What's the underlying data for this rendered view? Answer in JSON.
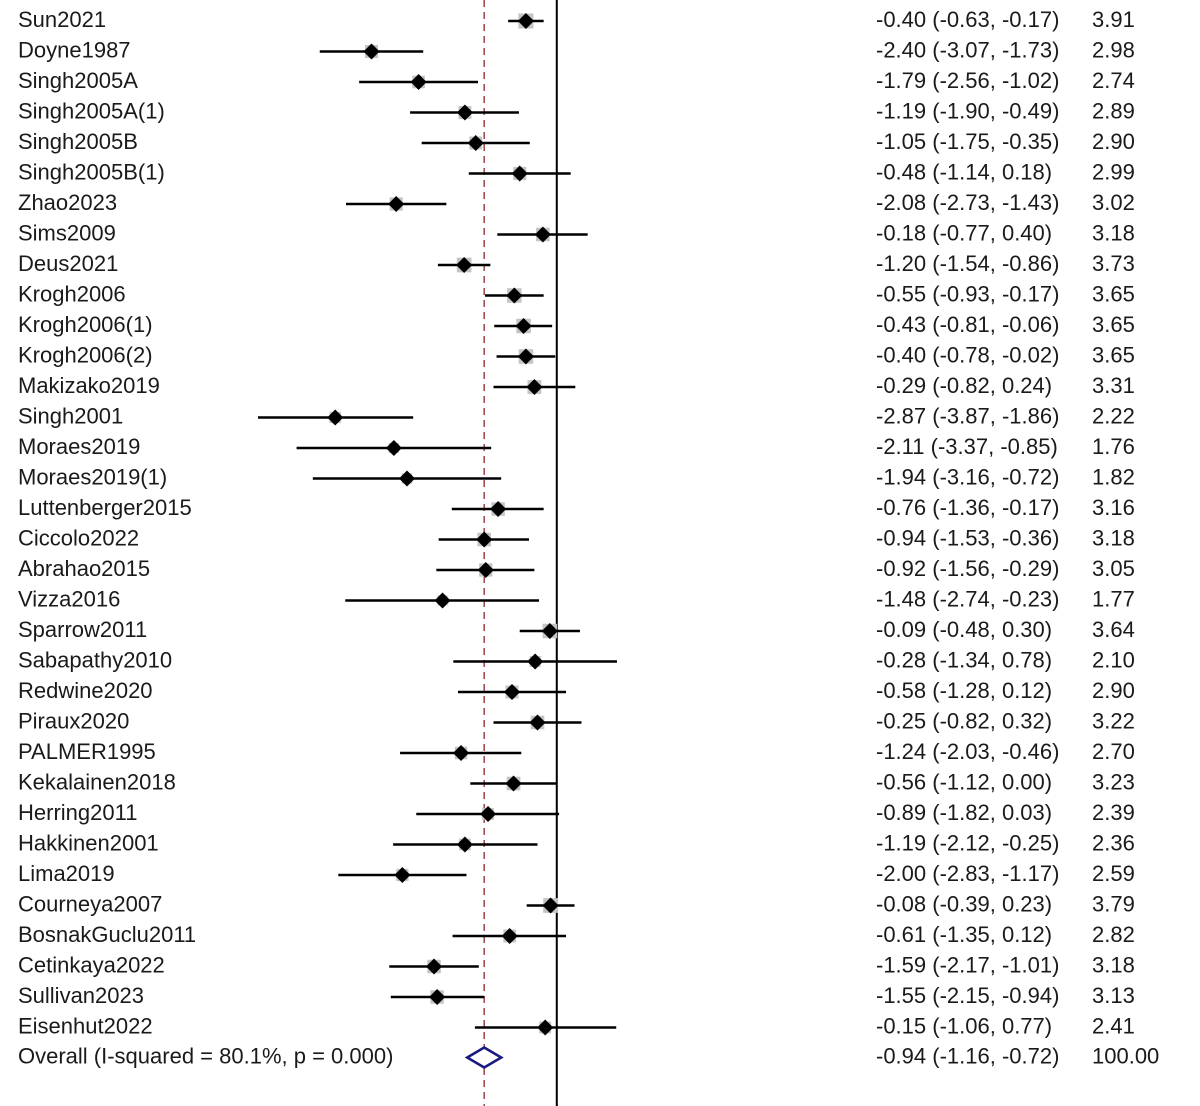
{
  "chart_data": {
    "type": "forest",
    "null_value": 0,
    "xlim": [
      -3.87,
      0.78
    ],
    "studies": [
      {
        "name": "Sun2021",
        "es": -0.4,
        "lo": -0.63,
        "hi": -0.17,
        "weight": 3.91,
        "es_text": "-0.40 (-0.63, -0.17)",
        "weight_text": "3.91"
      },
      {
        "name": "Doyne1987",
        "es": -2.4,
        "lo": -3.07,
        "hi": -1.73,
        "weight": 2.98,
        "es_text": "-2.40 (-3.07, -1.73)",
        "weight_text": "2.98"
      },
      {
        "name": "Singh2005A",
        "es": -1.79,
        "lo": -2.56,
        "hi": -1.02,
        "weight": 2.74,
        "es_text": "-1.79 (-2.56, -1.02)",
        "weight_text": "2.74"
      },
      {
        "name": "Singh2005A(1)",
        "es": -1.19,
        "lo": -1.9,
        "hi": -0.49,
        "weight": 2.89,
        "es_text": "-1.19 (-1.90, -0.49)",
        "weight_text": "2.89"
      },
      {
        "name": "Singh2005B",
        "es": -1.05,
        "lo": -1.75,
        "hi": -0.35,
        "weight": 2.9,
        "es_text": "-1.05 (-1.75, -0.35)",
        "weight_text": "2.90"
      },
      {
        "name": "Singh2005B(1)",
        "es": -0.48,
        "lo": -1.14,
        "hi": 0.18,
        "weight": 2.99,
        "es_text": "-0.48 (-1.14, 0.18)",
        "weight_text": "2.99"
      },
      {
        "name": "Zhao2023",
        "es": -2.08,
        "lo": -2.73,
        "hi": -1.43,
        "weight": 3.02,
        "es_text": "-2.08 (-2.73, -1.43)",
        "weight_text": "3.02"
      },
      {
        "name": "Sims2009",
        "es": -0.18,
        "lo": -0.77,
        "hi": 0.4,
        "weight": 3.18,
        "es_text": "-0.18 (-0.77, 0.40)",
        "weight_text": "3.18"
      },
      {
        "name": "Deus2021",
        "es": -1.2,
        "lo": -1.54,
        "hi": -0.86,
        "weight": 3.73,
        "es_text": "-1.20 (-1.54, -0.86)",
        "weight_text": "3.73"
      },
      {
        "name": "Krogh2006",
        "es": -0.55,
        "lo": -0.93,
        "hi": -0.17,
        "weight": 3.65,
        "es_text": "-0.55 (-0.93, -0.17)",
        "weight_text": "3.65"
      },
      {
        "name": "Krogh2006(1)",
        "es": -0.43,
        "lo": -0.81,
        "hi": -0.06,
        "weight": 3.65,
        "es_text": "-0.43 (-0.81, -0.06)",
        "weight_text": "3.65"
      },
      {
        "name": "Krogh2006(2)",
        "es": -0.4,
        "lo": -0.78,
        "hi": -0.02,
        "weight": 3.65,
        "es_text": "-0.40 (-0.78, -0.02)",
        "weight_text": "3.65"
      },
      {
        "name": "Makizako2019",
        "es": -0.29,
        "lo": -0.82,
        "hi": 0.24,
        "weight": 3.31,
        "es_text": "-0.29 (-0.82, 0.24)",
        "weight_text": "3.31"
      },
      {
        "name": "Singh2001",
        "es": -2.87,
        "lo": -3.87,
        "hi": -1.86,
        "weight": 2.22,
        "es_text": "-2.87 (-3.87, -1.86)",
        "weight_text": "2.22"
      },
      {
        "name": "Moraes2019",
        "es": -2.11,
        "lo": -3.37,
        "hi": -0.85,
        "weight": 1.76,
        "es_text": "-2.11 (-3.37, -0.85)",
        "weight_text": "1.76"
      },
      {
        "name": "Moraes2019(1)",
        "es": -1.94,
        "lo": -3.16,
        "hi": -0.72,
        "weight": 1.82,
        "es_text": "-1.94 (-3.16, -0.72)",
        "weight_text": "1.82"
      },
      {
        "name": "Luttenberger2015",
        "es": -0.76,
        "lo": -1.36,
        "hi": -0.17,
        "weight": 3.16,
        "es_text": "-0.76 (-1.36, -0.17)",
        "weight_text": "3.16"
      },
      {
        "name": "Ciccolo2022",
        "es": -0.94,
        "lo": -1.53,
        "hi": -0.36,
        "weight": 3.18,
        "es_text": "-0.94 (-1.53, -0.36)",
        "weight_text": "3.18"
      },
      {
        "name": "Abrahao2015",
        "es": -0.92,
        "lo": -1.56,
        "hi": -0.29,
        "weight": 3.05,
        "es_text": "-0.92 (-1.56, -0.29)",
        "weight_text": "3.05"
      },
      {
        "name": "Vizza2016",
        "es": -1.48,
        "lo": -2.74,
        "hi": -0.23,
        "weight": 1.77,
        "es_text": "-1.48 (-2.74, -0.23)",
        "weight_text": "1.77"
      },
      {
        "name": "Sparrow2011",
        "es": -0.09,
        "lo": -0.48,
        "hi": 0.3,
        "weight": 3.64,
        "es_text": "-0.09 (-0.48, 0.30)",
        "weight_text": "3.64"
      },
      {
        "name": "Sabapathy2010",
        "es": -0.28,
        "lo": -1.34,
        "hi": 0.78,
        "weight": 2.1,
        "es_text": "-0.28 (-1.34, 0.78)",
        "weight_text": "2.10"
      },
      {
        "name": "Redwine2020",
        "es": -0.58,
        "lo": -1.28,
        "hi": 0.12,
        "weight": 2.9,
        "es_text": "-0.58 (-1.28, 0.12)",
        "weight_text": "2.90"
      },
      {
        "name": "Piraux2020",
        "es": -0.25,
        "lo": -0.82,
        "hi": 0.32,
        "weight": 3.22,
        "es_text": "-0.25 (-0.82, 0.32)",
        "weight_text": "3.22"
      },
      {
        "name": "PALMER1995",
        "es": -1.24,
        "lo": -2.03,
        "hi": -0.46,
        "weight": 2.7,
        "es_text": "-1.24 (-2.03, -0.46)",
        "weight_text": "2.70"
      },
      {
        "name": "Kekalainen2018",
        "es": -0.56,
        "lo": -1.12,
        "hi": 0.0,
        "weight": 3.23,
        "es_text": "-0.56 (-1.12, 0.00)",
        "weight_text": "3.23"
      },
      {
        "name": "Herring2011",
        "es": -0.89,
        "lo": -1.82,
        "hi": 0.03,
        "weight": 2.39,
        "es_text": "-0.89 (-1.82, 0.03)",
        "weight_text": "2.39"
      },
      {
        "name": "Hakkinen2001",
        "es": -1.19,
        "lo": -2.12,
        "hi": -0.25,
        "weight": 2.36,
        "es_text": "-1.19 (-2.12, -0.25)",
        "weight_text": "2.36"
      },
      {
        "name": "Lima2019",
        "es": -2.0,
        "lo": -2.83,
        "hi": -1.17,
        "weight": 2.59,
        "es_text": "-2.00 (-2.83, -1.17)",
        "weight_text": "2.59"
      },
      {
        "name": "Courneya2007",
        "es": -0.08,
        "lo": -0.39,
        "hi": 0.23,
        "weight": 3.79,
        "es_text": "-0.08 (-0.39, 0.23)",
        "weight_text": "3.79"
      },
      {
        "name": "BosnakGuclu2011",
        "es": -0.61,
        "lo": -1.35,
        "hi": 0.12,
        "weight": 2.82,
        "es_text": "-0.61 (-1.35, 0.12)",
        "weight_text": "2.82"
      },
      {
        "name": "Cetinkaya2022",
        "es": -1.59,
        "lo": -2.17,
        "hi": -1.01,
        "weight": 3.18,
        "es_text": "-1.59 (-2.17, -1.01)",
        "weight_text": "3.18"
      },
      {
        "name": "Sullivan2023",
        "es": -1.55,
        "lo": -2.15,
        "hi": -0.94,
        "weight": 3.13,
        "es_text": "-1.55 (-2.15, -0.94)",
        "weight_text": "3.13"
      },
      {
        "name": "Eisenhut2022",
        "es": -0.15,
        "lo": -1.06,
        "hi": 0.77,
        "weight": 2.41,
        "es_text": "-0.15 (-1.06, 0.77)",
        "weight_text": "2.41"
      }
    ],
    "overall": {
      "label": "Overall  (I-squared = 80.1%, p = 0.000)",
      "es": -0.94,
      "lo": -1.16,
      "hi": -0.72,
      "weight": 100.0,
      "es_text": "-0.94 (-1.16, -0.72)",
      "weight_text": "100.00"
    },
    "colors": {
      "ci_line": "#000000",
      "weight_box": "#c4c4c4",
      "point": "#000000",
      "overall_diamond_stroke": "#1a1a80",
      "pooled_line": "#a05050",
      "null_line": "#000000",
      "text": "#1a1a1a"
    }
  }
}
